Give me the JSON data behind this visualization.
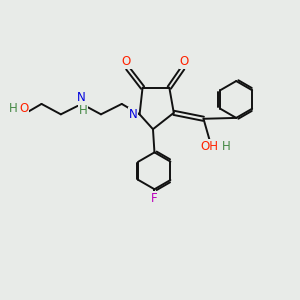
{
  "bg_color": "#e8ebe8",
  "atom_colors": {
    "O": "#ff2200",
    "N": "#0000dd",
    "F": "#bb00bb",
    "H": "#448844",
    "C": "#111111",
    "default": "#111111"
  },
  "bond_color": "#111111",
  "label_fontsize": 8.5,
  "figsize": [
    3.0,
    3.0
  ],
  "dpi": 100
}
